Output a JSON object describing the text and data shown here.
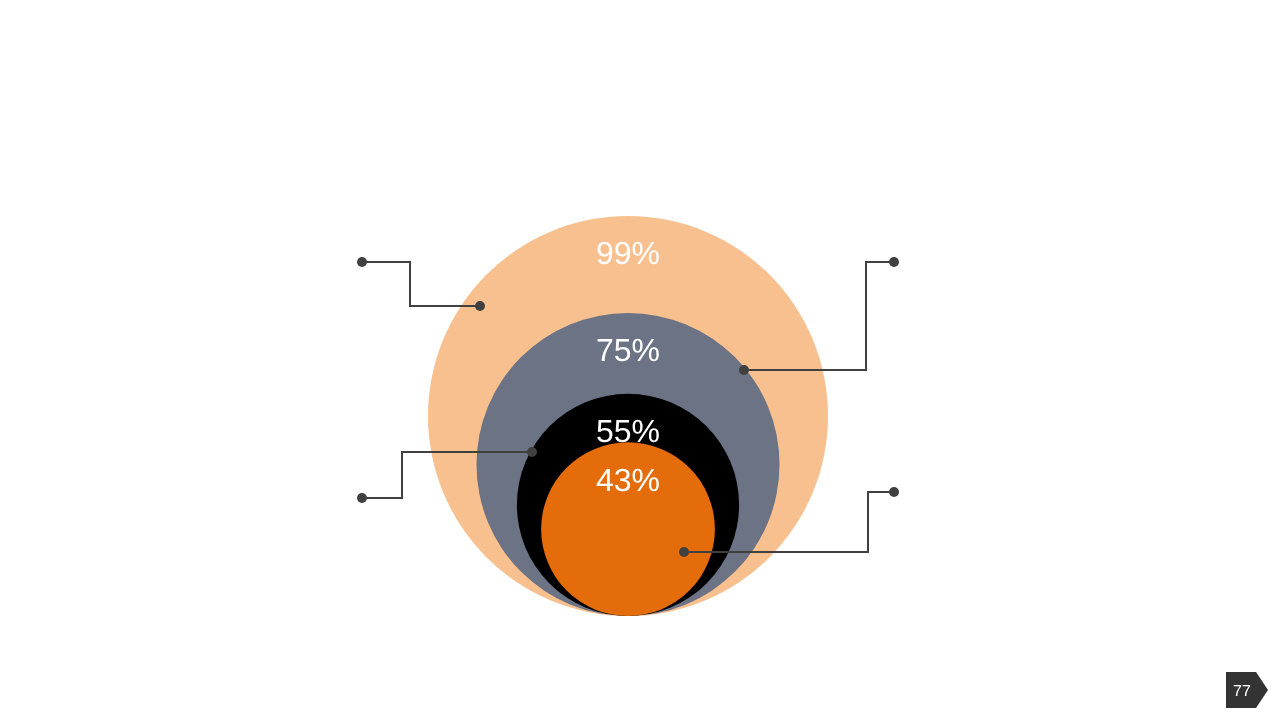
{
  "chart_data": {
    "type": "other",
    "categories": [
      null,
      null,
      null,
      null
    ],
    "values": [
      99,
      75,
      55,
      43
    ],
    "value_labels": [
      "99%",
      "75%",
      "55%",
      "43%"
    ],
    "colors": [
      "#f9c08f",
      "#6b7385",
      "#000000",
      "#e46c0a"
    ],
    "annotations": [
      "77"
    ]
  }
}
